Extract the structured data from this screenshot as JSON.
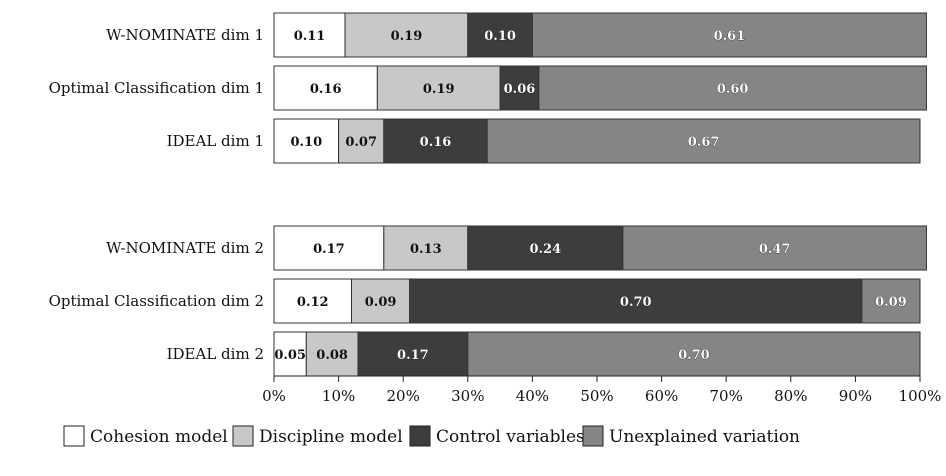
{
  "chart_data": {
    "type": "bar",
    "orientation": "horizontal",
    "stacked": true,
    "categories": [
      "W-NOMINATE dim 1",
      "Optimal Classification dim 1",
      "IDEAL dim 1",
      "",
      "W-NOMINATE dim 2",
      "Optimal Classification dim 2",
      "IDEAL dim 2"
    ],
    "series": [
      {
        "name": "Cohesion model",
        "values": [
          0.11,
          0.16,
          0.1,
          null,
          0.17,
          0.12,
          0.05
        ],
        "labels": [
          "0.11",
          "0.16",
          "0.10",
          null,
          "0.17",
          "0.12",
          "0.05"
        ]
      },
      {
        "name": "Discipline model",
        "values": [
          0.19,
          0.19,
          0.07,
          null,
          0.13,
          0.09,
          0.08
        ],
        "labels": [
          "0.19",
          "0.19",
          "0.07",
          null,
          "0.13",
          "0.09",
          "0.08"
        ]
      },
      {
        "name": "Control variables",
        "values": [
          0.1,
          0.06,
          0.16,
          null,
          0.24,
          0.7,
          0.17
        ],
        "labels": [
          "0.10",
          "0.06",
          "0.16",
          null,
          "0.24",
          "0.70",
          "0.17"
        ]
      },
      {
        "name": "Unexplained variation",
        "values": [
          0.61,
          0.6,
          0.67,
          null,
          0.47,
          0.09,
          0.7
        ],
        "labels": [
          "0.61",
          "0.60",
          "0.67",
          null,
          "0.47",
          "0.09",
          "0.70"
        ]
      }
    ],
    "xlim": [
      0,
      1
    ],
    "xticks": [
      "0%",
      "10%",
      "20%",
      "30%",
      "40%",
      "50%",
      "60%",
      "70%",
      "80%",
      "90%",
      "100%"
    ],
    "title": "",
    "xlabel": "",
    "ylabel": "",
    "grid": false,
    "legend": "bottom",
    "colors": {
      "Cohesion model": "#ffffff",
      "Discipline model": "#c8c8c8",
      "Control variables": "#3d3d3d",
      "Unexplained variation": "#858585"
    }
  }
}
